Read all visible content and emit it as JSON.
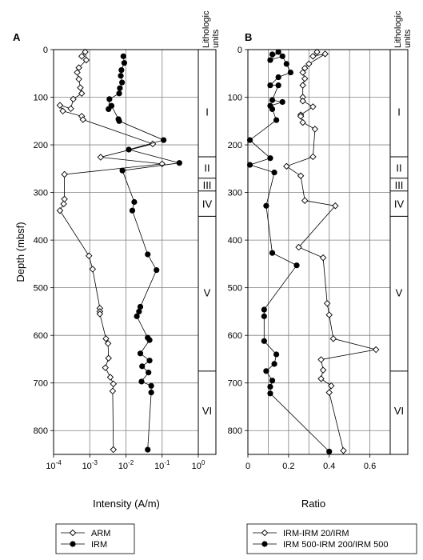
{
  "chart_data": [
    {
      "panel": "A",
      "type": "line",
      "x_scale": "log",
      "xlim": [
        0.0001,
        1
      ],
      "ylim": [
        850,
        0
      ],
      "xlabel": "Intensity (A/m)",
      "ylabel": "Depth (mbsf)",
      "x_ticks": [
        "10-4",
        "10-3",
        "10-2",
        "10-1",
        "100"
      ],
      "y_ticks": [
        "0",
        "100",
        "200",
        "300",
        "400",
        "500",
        "600",
        "700",
        "800"
      ],
      "grid": true,
      "series": [
        {
          "name": "ARM",
          "marker": "open-diamond",
          "points": [
            [
              0.0006,
              14
            ],
            [
              0.00075,
              5
            ],
            [
              0.0008,
              22
            ],
            [
              0.0005,
              38
            ],
            [
              0.00045,
              48
            ],
            [
              0.0005,
              62
            ],
            [
              0.00055,
              80
            ],
            [
              0.0006,
              92
            ],
            [
              0.00035,
              104
            ],
            [
              0.0003,
              124
            ],
            [
              0.00015,
              117
            ],
            [
              0.00018,
              129
            ],
            [
              0.0006,
              140
            ],
            [
              0.00065,
              147
            ],
            [
              0.055,
              198
            ],
            [
              0.002,
              226
            ],
            [
              0.1,
              240
            ],
            [
              0.0002,
              262
            ],
            [
              0.0002,
              314
            ],
            [
              0.00019,
              324
            ],
            [
              0.00015,
              338
            ],
            [
              0.00095,
              433
            ],
            [
              0.0012,
              461
            ],
            [
              0.0019,
              543
            ],
            [
              0.0019,
              550
            ],
            [
              0.0019,
              555
            ],
            [
              0.0028,
              607
            ],
            [
              0.0032,
              617
            ],
            [
              0.0033,
              648
            ],
            [
              0.0027,
              668
            ],
            [
              0.0037,
              688
            ],
            [
              0.0045,
              702
            ],
            [
              0.0043,
              717
            ],
            [
              0.0045,
              840
            ]
          ]
        },
        {
          "name": "IRM",
          "marker": "filled-circle",
          "points": [
            [
              0.0085,
              14
            ],
            [
              0.009,
              28
            ],
            [
              0.0075,
              43
            ],
            [
              0.0072,
              55
            ],
            [
              0.0078,
              69
            ],
            [
              0.0068,
              81
            ],
            [
              0.0065,
              92
            ],
            [
              0.0035,
              104
            ],
            [
              0.0033,
              125
            ],
            [
              0.004,
              118
            ],
            [
              0.0062,
              146
            ],
            [
              0.0065,
              150
            ],
            [
              0.11,
              190
            ],
            [
              0.012,
              210
            ],
            [
              0.3,
              238
            ],
            [
              0.008,
              254
            ],
            [
              0.017,
              320
            ],
            [
              0.015,
              338
            ],
            [
              0.04,
              430
            ],
            [
              0.07,
              463
            ],
            [
              0.025,
              540
            ],
            [
              0.023,
              550
            ],
            [
              0.02,
              560
            ],
            [
              0.04,
              605
            ],
            [
              0.045,
              610
            ],
            [
              0.025,
              638
            ],
            [
              0.045,
              653
            ],
            [
              0.028,
              665
            ],
            [
              0.042,
              678
            ],
            [
              0.027,
              697
            ],
            [
              0.05,
              706
            ],
            [
              0.05,
              720
            ],
            [
              0.04,
              840
            ]
          ]
        }
      ],
      "legend": {
        "position": "bottom",
        "entries": [
          "ARM",
          "IRM"
        ]
      }
    },
    {
      "panel": "B",
      "type": "line",
      "xlim": [
        0,
        0.7
      ],
      "ylim": [
        850,
        0
      ],
      "xlabel": "Ratio",
      "x_ticks": [
        "0",
        "0.2",
        "0.4",
        "0.6"
      ],
      "y_ticks": [
        "0",
        "100",
        "200",
        "300",
        "400",
        "500",
        "600",
        "700",
        "800"
      ],
      "grid": true,
      "series": [
        {
          "name": "IRM-IRM 20/IRM",
          "marker": "open-diamond",
          "points": [
            [
              0.34,
              5
            ],
            [
              0.32,
              14
            ],
            [
              0.38,
              9
            ],
            [
              0.3,
              30
            ],
            [
              0.28,
              39
            ],
            [
              0.27,
              48
            ],
            [
              0.28,
              61
            ],
            [
              0.27,
              75
            ],
            [
              0.27,
              100
            ],
            [
              0.27,
              108
            ],
            [
              0.32,
              120
            ],
            [
              0.26,
              137
            ],
            [
              0.26,
              140
            ],
            [
              0.27,
              153
            ],
            [
              0.33,
              167
            ],
            [
              0.32,
              225
            ],
            [
              0.19,
              245
            ],
            [
              0.26,
              265
            ],
            [
              0.28,
              317
            ],
            [
              0.43,
              328
            ],
            [
              0.25,
              415
            ],
            [
              0.37,
              437
            ],
            [
              0.39,
              533
            ],
            [
              0.4,
              557
            ],
            [
              0.42,
              607
            ],
            [
              0.63,
              630
            ],
            [
              0.36,
              651
            ],
            [
              0.37,
              673
            ],
            [
              0.36,
              691
            ],
            [
              0.41,
              706
            ],
            [
              0.4,
              720
            ],
            [
              0.47,
              842
            ]
          ]
        },
        {
          "name": "IRM 500-IRM 200/IRM 500",
          "marker": "filled-circle",
          "points": [
            [
              0.12,
              10
            ],
            [
              0.15,
              5
            ],
            [
              0.11,
              22
            ],
            [
              0.17,
              14
            ],
            [
              0.19,
              30
            ],
            [
              0.21,
              48
            ],
            [
              0.15,
              58
            ],
            [
              0.11,
              75
            ],
            [
              0.15,
              75
            ],
            [
              0.12,
              106
            ],
            [
              0.17,
              110
            ],
            [
              0.11,
              118
            ],
            [
              0.12,
              125
            ],
            [
              0.14,
              148
            ],
            [
              0.01,
              190
            ],
            [
              0.11,
              228
            ],
            [
              0.01,
              242
            ],
            [
              0.13,
              258
            ],
            [
              0.09,
              328
            ],
            [
              0.12,
              427
            ],
            [
              0.24,
              453
            ],
            [
              0.08,
              546
            ],
            [
              0.08,
              560
            ],
            [
              0.08,
              612
            ],
            [
              0.14,
              640
            ],
            [
              0.13,
              660
            ],
            [
              0.09,
              675
            ],
            [
              0.12,
              695
            ],
            [
              0.11,
              708
            ],
            [
              0.11,
              722
            ],
            [
              0.4,
              844
            ]
          ]
        }
      ],
      "legend": {
        "position": "bottom",
        "entries": [
          "IRM-IRM 20/IRM",
          "IRM 500-IRM 200/IRM 500"
        ]
      }
    }
  ],
  "lithologic_units": {
    "header": "Lithologic units",
    "units": [
      {
        "label": "I",
        "top": 0,
        "bottom": 225
      },
      {
        "label": "II",
        "top": 225,
        "bottom": 270
      },
      {
        "label": "III",
        "top": 270,
        "bottom": 297
      },
      {
        "label": "IV",
        "top": 297,
        "bottom": 350
      },
      {
        "label": "V",
        "top": 350,
        "bottom": 675
      },
      {
        "label": "VI",
        "top": 675,
        "bottom": 850
      }
    ]
  }
}
